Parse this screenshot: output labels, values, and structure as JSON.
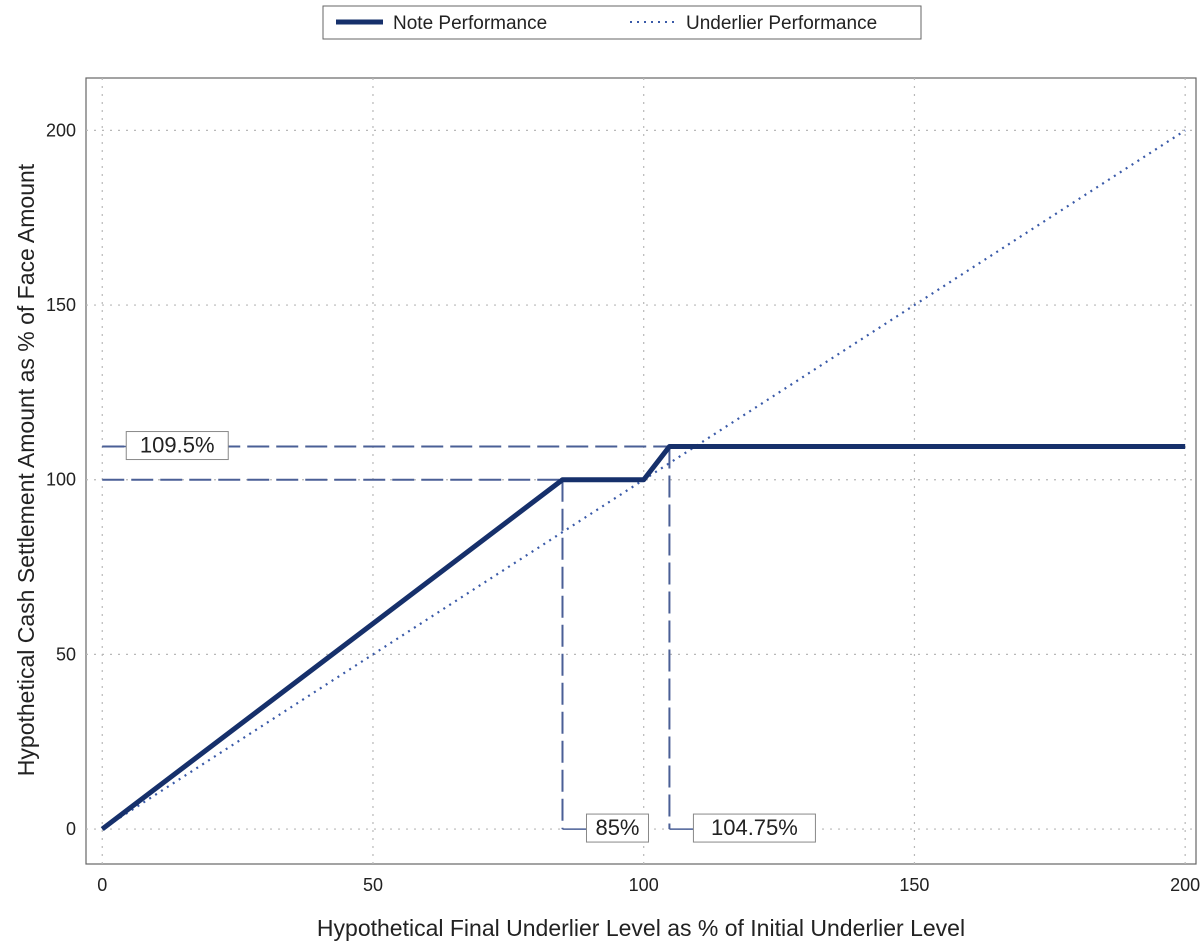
{
  "chart_data": {
    "type": "line",
    "xlabel": "Hypothetical Final Underlier Level as % of Initial Underlier Level",
    "ylabel": "Hypothetical Cash Settlement Amount as % of Face Amount",
    "xlim": [
      -3,
      202
    ],
    "ylim": [
      -10,
      215
    ],
    "xticks": [
      0,
      50,
      100,
      150,
      200
    ],
    "yticks": [
      0,
      50,
      100,
      150,
      200
    ],
    "grid": true,
    "legend_position": "top-center",
    "series": [
      {
        "name": "Note Performance",
        "style": "solid",
        "color": "#16306b",
        "x": [
          0,
          85,
          100,
          104.75,
          200
        ],
        "y": [
          0,
          100,
          100,
          109.5,
          109.5
        ]
      },
      {
        "name": "Underlier Performance",
        "style": "dotted",
        "color": "#3a5aa8",
        "x": [
          0,
          200
        ],
        "y": [
          0,
          200
        ]
      }
    ],
    "reference_lines": [
      {
        "orientation": "horizontal",
        "value": 109.5,
        "x_end": 104.75
      },
      {
        "orientation": "horizontal",
        "value": 100,
        "x_end": 85
      },
      {
        "orientation": "vertical",
        "value": 85,
        "y_end": 100
      },
      {
        "orientation": "vertical",
        "value": 104.75,
        "y_end": 109.5
      }
    ],
    "annotations": [
      {
        "text": "109.5%",
        "x": 0,
        "y": 109.5
      },
      {
        "text": "85%",
        "x": 85,
        "y": 0
      },
      {
        "text": "104.75%",
        "x": 104.75,
        "y": 0
      }
    ]
  }
}
